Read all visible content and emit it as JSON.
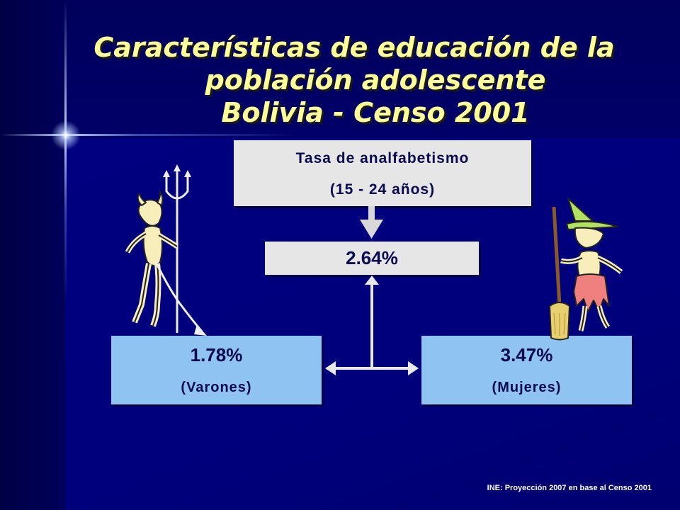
{
  "title": {
    "line1": "Características de educación de la",
    "line2": "población adolescente",
    "line3": "Bolivia - Censo 2001"
  },
  "main_box": {
    "line1": "Tasa de analfabetismo",
    "line2": "(15 - 24 años)"
  },
  "total_box": {
    "value": "2.64%"
  },
  "male_box": {
    "value": "1.78%",
    "label": "(Varones)"
  },
  "female_box": {
    "value": "3.47%",
    "label": "(Mujeres)"
  },
  "source": "INE: Proyección 2007 en base al Censo 2001",
  "colors": {
    "title_text": "#ffff99",
    "grey_box": "#e6e6e6",
    "blue_box": "#8fc3f2",
    "box_text": "#0a0a50",
    "arrow": "#d8d8d8"
  },
  "icons": [
    "devil-figure",
    "witch-figure"
  ]
}
